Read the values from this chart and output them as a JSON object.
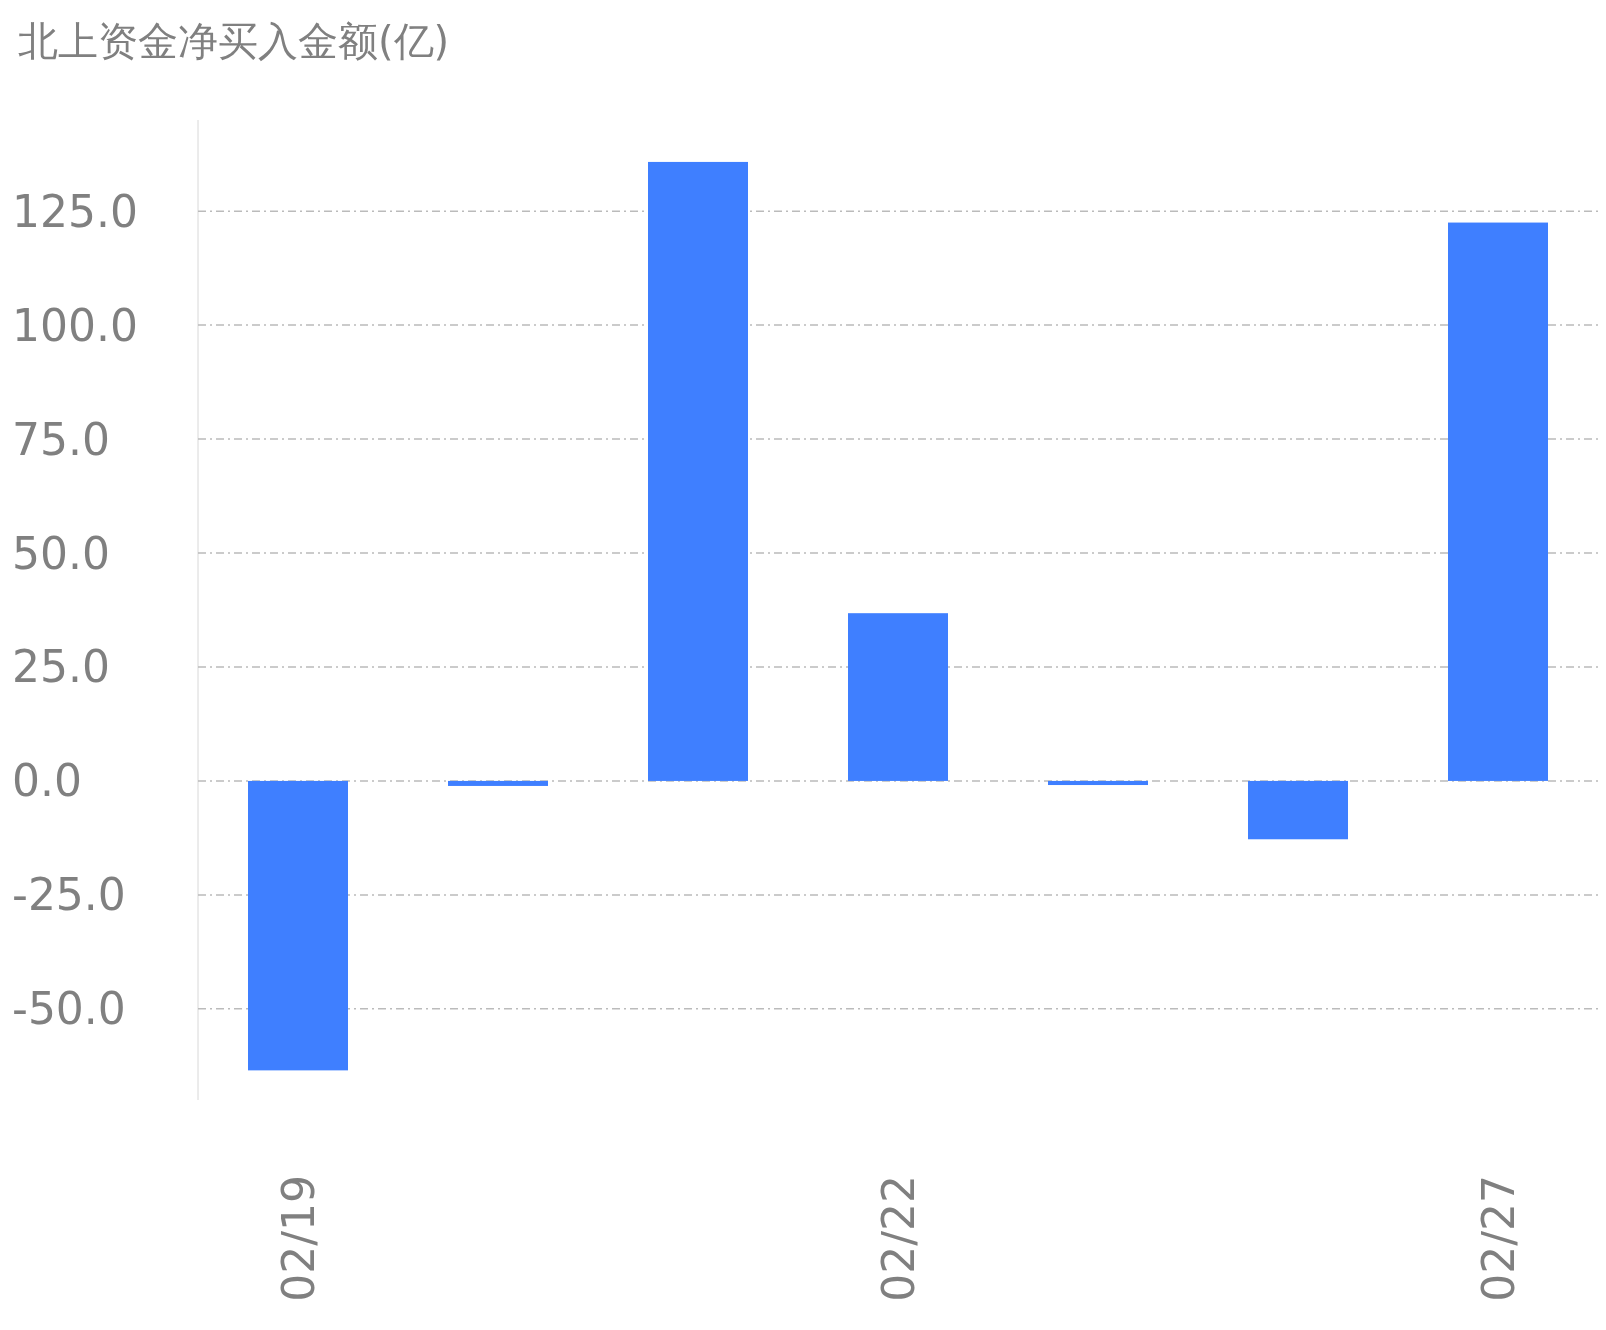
{
  "chart_data": {
    "type": "bar",
    "title": "北上资金净买入金额(亿)",
    "categories": [
      "02/19",
      null,
      null,
      "02/22",
      null,
      null,
      "02/27"
    ],
    "values": [
      -63.5,
      -1.1,
      135.8,
      36.8,
      -0.9,
      -12.8,
      122.5
    ],
    "color": "#3f7fff",
    "ylim": [
      -70,
      145
    ],
    "yticks": [
      {
        "value": -50,
        "label": "-50.0"
      },
      {
        "value": -25,
        "label": "-25.0"
      },
      {
        "value": 0,
        "label": "0.0"
      },
      {
        "value": 25,
        "label": "25.0"
      },
      {
        "value": 50,
        "label": "50.0"
      },
      {
        "value": 75,
        "label": "75.0"
      },
      {
        "value": 100,
        "label": "100.0"
      },
      {
        "value": 125,
        "label": "125.0"
      }
    ],
    "grid": "y"
  }
}
